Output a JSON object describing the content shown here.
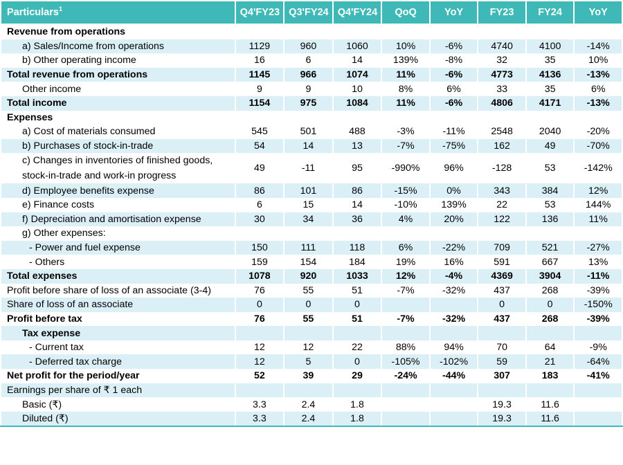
{
  "header": {
    "particulars": "Particulars",
    "footnote": "1",
    "cols": [
      "Q4'FY23",
      "Q3'FY24",
      "Q4'FY24",
      "QoQ",
      "YoY",
      "FY23",
      "FY24",
      "YoY"
    ]
  },
  "rows": [
    {
      "label": "Revenue from operations",
      "indent": 0,
      "bold": true,
      "shade": false,
      "cells": [
        "",
        "",
        "",
        "",
        "",
        "",
        "",
        ""
      ]
    },
    {
      "label": "a) Sales/Income from operations",
      "indent": 1,
      "bold": false,
      "shade": true,
      "cells": [
        "1129",
        "960",
        "1060",
        "10%",
        "-6%",
        "4740",
        "4100",
        "-14%"
      ]
    },
    {
      "label": "b) Other operating income",
      "indent": 1,
      "bold": false,
      "shade": false,
      "cells": [
        "16",
        "6",
        "14",
        "139%",
        "-8%",
        "32",
        "35",
        "10%"
      ]
    },
    {
      "label": "Total revenue from operations",
      "indent": 0,
      "bold": true,
      "shade": true,
      "cells": [
        "1145",
        "966",
        "1074",
        "11%",
        "-6%",
        "4773",
        "4136",
        "-13%"
      ]
    },
    {
      "label": "Other income",
      "indent": 1,
      "bold": false,
      "shade": false,
      "cells": [
        "9",
        "9",
        "10",
        "8%",
        "6%",
        "33",
        "35",
        "6%"
      ]
    },
    {
      "label": "Total income",
      "indent": 0,
      "bold": true,
      "shade": true,
      "cells": [
        "1154",
        "975",
        "1084",
        "11%",
        "-6%",
        "4806",
        "4171",
        "-13%"
      ]
    },
    {
      "label": "Expenses",
      "indent": 0,
      "bold": true,
      "shade": false,
      "cells": [
        "",
        "",
        "",
        "",
        "",
        "",
        "",
        ""
      ]
    },
    {
      "label": "a) Cost of materials consumed",
      "indent": 1,
      "bold": false,
      "shade": false,
      "cells": [
        "545",
        "501",
        "488",
        "-3%",
        "-11%",
        "2548",
        "2040",
        "-20%"
      ]
    },
    {
      "label": "b) Purchases of stock-in-trade",
      "indent": 1,
      "bold": false,
      "shade": true,
      "cells": [
        "54",
        "14",
        "13",
        "-7%",
        "-75%",
        "162",
        "49",
        "-70%"
      ]
    },
    {
      "label": "c) Changes in inventories of finished goods, stock-in-trade and work-in progress",
      "indent": 1,
      "bold": false,
      "shade": false,
      "tall": true,
      "cells": [
        "49",
        "-11",
        "95",
        "-990%",
        "96%",
        "-128",
        "53",
        "-142%"
      ]
    },
    {
      "label": "d) Employee benefits expense",
      "indent": 1,
      "bold": false,
      "shade": true,
      "cells": [
        "86",
        "101",
        "86",
        "-15%",
        "0%",
        "343",
        "384",
        "12%"
      ]
    },
    {
      "label": "e) Finance costs",
      "indent": 1,
      "bold": false,
      "shade": false,
      "cells": [
        "6",
        "15",
        "14",
        "-10%",
        "139%",
        "22",
        "53",
        "144%"
      ]
    },
    {
      "label": "f) Depreciation and amortisation expense",
      "indent": 1,
      "bold": false,
      "shade": true,
      "cells": [
        "30",
        "34",
        "36",
        "4%",
        "20%",
        "122",
        "136",
        "11%"
      ]
    },
    {
      "label": "g) Other expenses:",
      "indent": 1,
      "bold": false,
      "shade": false,
      "cells": [
        "",
        "",
        "",
        "",
        "",
        "",
        "",
        ""
      ]
    },
    {
      "label": "- Power and fuel expense",
      "indent": 2,
      "bold": false,
      "shade": true,
      "cells": [
        "150",
        "111",
        "118",
        "6%",
        "-22%",
        "709",
        "521",
        "-27%"
      ]
    },
    {
      "label": "- Others",
      "indent": 2,
      "bold": false,
      "shade": false,
      "cells": [
        "159",
        "154",
        "184",
        "19%",
        "16%",
        "591",
        "667",
        "13%"
      ]
    },
    {
      "label": "Total expenses",
      "indent": 0,
      "bold": true,
      "shade": true,
      "cells": [
        "1078",
        "920",
        "1033",
        "12%",
        "-4%",
        "4369",
        "3904",
        "-11%"
      ]
    },
    {
      "label": "Profit before share of loss of an associate (3-4)",
      "indent": 0,
      "bold": false,
      "shade": false,
      "cells": [
        "76",
        "55",
        "51",
        "-7%",
        "-32%",
        "437",
        "268",
        "-39%"
      ]
    },
    {
      "label": "Share of loss of an associate",
      "indent": 0,
      "bold": false,
      "shade": true,
      "cells": [
        "0",
        "0",
        "0",
        "",
        "",
        "0",
        "0",
        "-150%"
      ]
    },
    {
      "label": "Profit before tax",
      "indent": 0,
      "bold": true,
      "shade": false,
      "cells": [
        "76",
        "55",
        "51",
        "-7%",
        "-32%",
        "437",
        "268",
        "-39%"
      ]
    },
    {
      "label": "Tax expense",
      "indent": 1,
      "bold": true,
      "shade": true,
      "cells": [
        "",
        "",
        "",
        "",
        "",
        "",
        "",
        ""
      ]
    },
    {
      "label": "- Current tax",
      "indent": 2,
      "bold": false,
      "shade": false,
      "cells": [
        "12",
        "12",
        "22",
        "88%",
        "94%",
        "70",
        "64",
        "-9%"
      ]
    },
    {
      "label": "- Deferred tax charge",
      "indent": 2,
      "bold": false,
      "shade": true,
      "cells": [
        "12",
        "5",
        "0",
        "-105%",
        "-102%",
        "59",
        "21",
        "-64%"
      ]
    },
    {
      "label": "Net profit for the period/year",
      "indent": 0,
      "bold": true,
      "shade": false,
      "cells": [
        "52",
        "39",
        "29",
        "-24%",
        "-44%",
        "307",
        "183",
        "-41%"
      ]
    },
    {
      "label": "Earnings per share of ₹ 1 each",
      "indent": 0,
      "bold": false,
      "shade": true,
      "cells": [
        "",
        "",
        "",
        "",
        "",
        "",
        "",
        ""
      ]
    },
    {
      "label": "Basic (₹)",
      "indent": 1,
      "bold": false,
      "shade": false,
      "cells": [
        "3.3",
        "2.4",
        "1.8",
        "",
        "",
        "19.3",
        "11.6",
        ""
      ]
    },
    {
      "label": "Diluted (₹)",
      "indent": 1,
      "bold": false,
      "shade": true,
      "cells": [
        "3.3",
        "2.4",
        "1.8",
        "",
        "",
        "19.3",
        "11.6",
        ""
      ]
    }
  ],
  "colors": {
    "header_bg": "#3fb9b7",
    "row_shade": "#dbeff6"
  }
}
